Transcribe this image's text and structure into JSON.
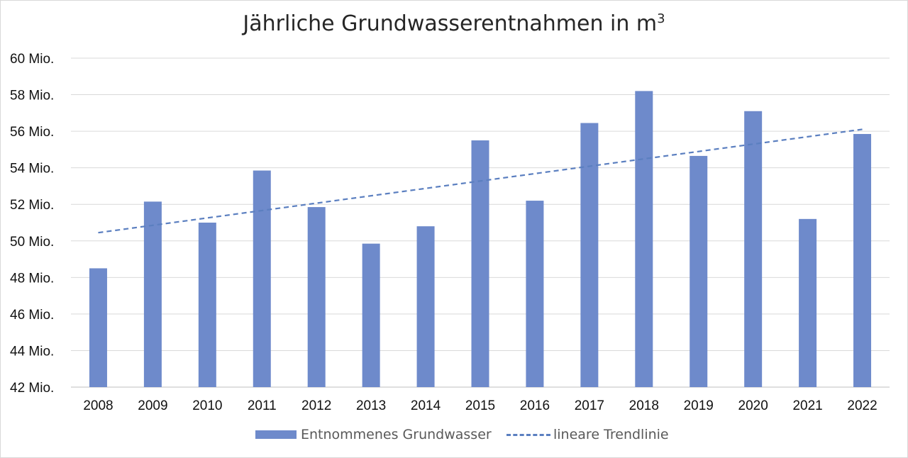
{
  "title": "Jährliche Grundwasserentnahmen in m",
  "title_sup": "3",
  "chart_data": {
    "type": "bar",
    "categories": [
      "2008",
      "2009",
      "2010",
      "2011",
      "2012",
      "2013",
      "2014",
      "2015",
      "2016",
      "2017",
      "2018",
      "2019",
      "2020",
      "2021",
      "2022"
    ],
    "series": [
      {
        "name": "Entnommenes Grundwasser",
        "color": "#6e8acb",
        "values": [
          48.5,
          52.15,
          51.0,
          53.85,
          51.85,
          49.85,
          50.8,
          55.5,
          52.2,
          56.45,
          58.2,
          54.65,
          57.1,
          51.2,
          55.85
        ]
      }
    ],
    "trendline": {
      "name": "lineare Trendlinie",
      "color": "#5b7fc0",
      "type": "linear"
    },
    "ylim": [
      42,
      60
    ],
    "yticks": [
      42,
      44,
      46,
      48,
      50,
      52,
      54,
      56,
      58,
      60
    ],
    "ytick_labels": [
      "42 Mio.",
      "44 Mio.",
      "46 Mio.",
      "48 Mio.",
      "50 Mio.",
      "52 Mio.",
      "54 Mio.",
      "56 Mio.",
      "58 Mio.",
      "60 Mio."
    ],
    "xlabel": "",
    "ylabel": "",
    "grid": true,
    "legend_position": "bottom"
  }
}
